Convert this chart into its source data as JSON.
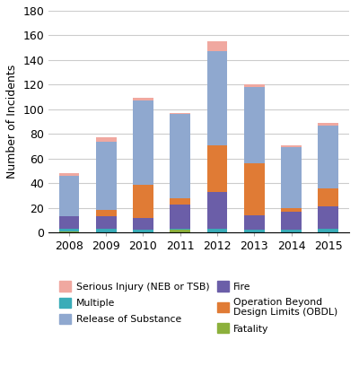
{
  "years": [
    "2008",
    "2009",
    "2010",
    "2011",
    "2012",
    "2013",
    "2014",
    "2015"
  ],
  "colors": {
    "Fatality": "#8cb03c",
    "Multiple": "#3aacb8",
    "Fire": "#6b5ea8",
    "Operation Beyond\nDesign Limits (OBDL)": "#e07b35",
    "Release of Substance": "#8fa8cf",
    "Serious Injury (NEB or TSB)": "#f0a8a0"
  },
  "data": {
    "Fatality": [
      1,
      0,
      0,
      2,
      0,
      0,
      0,
      0
    ],
    "Multiple": [
      2,
      3,
      2,
      1,
      3,
      2,
      2,
      3
    ],
    "Fire": [
      10,
      10,
      10,
      20,
      30,
      12,
      15,
      18
    ],
    "OBDL": [
      0,
      5,
      27,
      5,
      38,
      42,
      3,
      15
    ],
    "Release of Substance": [
      33,
      56,
      68,
      68,
      76,
      62,
      49,
      51
    ],
    "Serious Injury (NEB or TSB)": [
      2,
      3,
      2,
      1,
      8,
      2,
      2,
      2
    ]
  },
  "stack_order": [
    "Fatality",
    "Multiple",
    "Fire",
    "OBDL",
    "Release of Substance",
    "Serious Injury (NEB or TSB)"
  ],
  "color_keys": {
    "Fatality": "Fatality",
    "Multiple": "Multiple",
    "Fire": "Fire",
    "OBDL": "Operation Beyond\nDesign Limits (OBDL)",
    "Release of Substance": "Release of Substance",
    "Serious Injury (NEB or TSB)": "Serious Injury (NEB or TSB)"
  },
  "ylim": [
    0,
    180
  ],
  "yticks": [
    0,
    20,
    40,
    60,
    80,
    100,
    120,
    140,
    160,
    180
  ],
  "ylabel": "Number of Incidents",
  "grid_color": "#cccccc",
  "bar_width": 0.55,
  "background_color": "#ffffff",
  "legend_left": [
    [
      "Serious Injury (NEB or TSB)",
      "Serious Injury (NEB or TSB)"
    ],
    [
      "Release of Substance",
      "Release of Substance"
    ],
    [
      "OBDL",
      "Operation Beyond\nDesign Limits (OBDL)"
    ]
  ],
  "legend_right": [
    [
      "Multiple",
      "Multiple"
    ],
    [
      "Fire",
      "Fire"
    ],
    [
      "Fatality",
      "Fatality"
    ]
  ]
}
